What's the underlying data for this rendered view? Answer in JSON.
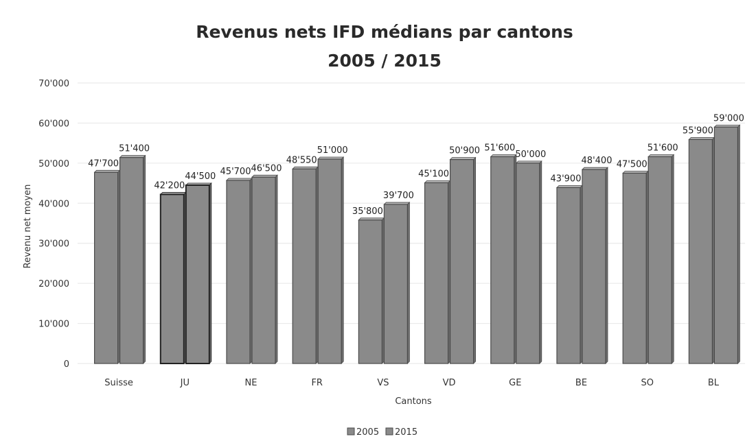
{
  "chart_data": {
    "type": "bar",
    "title": "Revenus nets IFD médians par cantons",
    "subtitle": "2005 / 2015",
    "xlabel": "Cantons",
    "ylabel": "Revenu net moyen",
    "ylim": [
      0,
      70000
    ],
    "yticks": [
      0,
      10000,
      20000,
      30000,
      40000,
      50000,
      60000,
      70000
    ],
    "ytick_labels": [
      "0",
      "10'000",
      "20'000",
      "30'000",
      "40'000",
      "50'000",
      "60'000",
      "70'000"
    ],
    "categories": [
      "Suisse",
      "JU",
      "NE",
      "FR",
      "VS",
      "VD",
      "GE",
      "BE",
      "SO",
      "BL"
    ],
    "series": [
      {
        "name": "2005",
        "values": [
          47700,
          42200,
          45700,
          48550,
          35800,
          45100,
          51600,
          43900,
          47500,
          55900
        ],
        "labels": [
          "47'700",
          "42'200",
          "45'700",
          "48'550",
          "35'800",
          "45'100",
          "51'600",
          "43'900",
          "47'500",
          "55'900"
        ]
      },
      {
        "name": "2015",
        "values": [
          51400,
          44500,
          46500,
          51000,
          39700,
          50900,
          50000,
          48400,
          51600,
          59000
        ],
        "labels": [
          "51'400",
          "44'500",
          "46'500",
          "51'000",
          "39'700",
          "50'900",
          "50'000",
          "48'400",
          "51'600",
          "59'000"
        ]
      }
    ],
    "legend": [
      "2005",
      "2015"
    ],
    "legend_position": "bottom",
    "grid": true,
    "colors": {
      "bar_fill": "#8a8a8a",
      "bar_edge": "#4a4a4a",
      "bar_edge_ju": "#222222"
    }
  }
}
